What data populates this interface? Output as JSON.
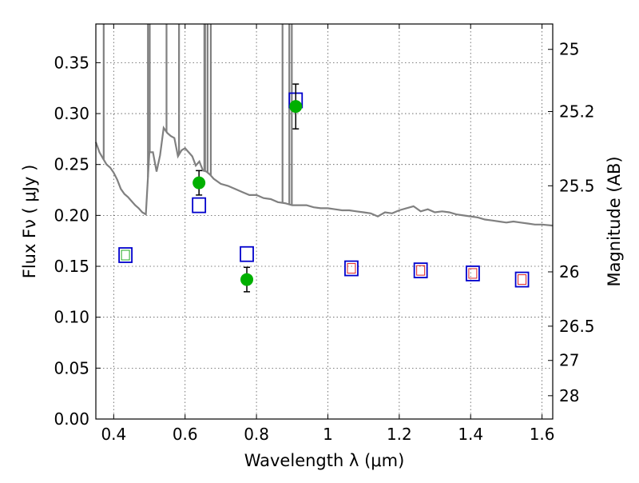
{
  "chart_data": {
    "type": "scatter",
    "xlabel": "Wavelength  λ (μm)",
    "ylabel": "Flux  Fν  ( μJy )",
    "y2label": "Magnitude (AB)",
    "xlim": [
      0.35,
      1.63
    ],
    "ylim": [
      0.0,
      0.388
    ],
    "grid": true,
    "x_ticks": [
      0.4,
      0.6,
      0.8,
      1.0,
      1.2,
      1.4,
      1.6
    ],
    "x_tick_labels": [
      "0.4",
      "0.6",
      "0.8",
      "1",
      "1.2",
      "1.4",
      "1.6"
    ],
    "y_ticks": [
      0.0,
      0.05,
      0.1,
      0.15,
      0.2,
      0.25,
      0.3,
      0.35
    ],
    "y_tick_labels": [
      "0.00",
      "0.05",
      "0.10",
      "0.15",
      "0.20",
      "0.25",
      "0.30",
      "0.35"
    ],
    "mag_ticks": [
      {
        "mag": 25,
        "label": "25"
      },
      {
        "mag": 25.2,
        "label": "25.2"
      },
      {
        "mag": 25.5,
        "label": "25.5"
      },
      {
        "mag": 26,
        "label": "26"
      },
      {
        "mag": 26.5,
        "label": "26.5"
      },
      {
        "mag": 27,
        "label": "27"
      },
      {
        "mag": 28,
        "label": "28"
      }
    ],
    "colors": {
      "model": "#808080",
      "observed": "#00b000",
      "model_boxes": "#0000cc",
      "nir_inner": "#dd2222",
      "blue_inner": "#22aa22",
      "errorbar": "#000000"
    },
    "model_spectrum": {
      "x": [
        0.35,
        0.36,
        0.37,
        0.38,
        0.39,
        0.4,
        0.41,
        0.42,
        0.43,
        0.44,
        0.45,
        0.46,
        0.47,
        0.48,
        0.49,
        0.5,
        0.51,
        0.52,
        0.53,
        0.54,
        0.55,
        0.56,
        0.57,
        0.58,
        0.59,
        0.6,
        0.61,
        0.62,
        0.63,
        0.64,
        0.65,
        0.66,
        0.67,
        0.68,
        0.7,
        0.72,
        0.74,
        0.76,
        0.78,
        0.8,
        0.82,
        0.84,
        0.86,
        0.88,
        0.9,
        0.92,
        0.94,
        0.96,
        0.98,
        1.0,
        1.02,
        1.04,
        1.06,
        1.08,
        1.1,
        1.12,
        1.14,
        1.16,
        1.18,
        1.2,
        1.22,
        1.24,
        1.26,
        1.28,
        1.3,
        1.32,
        1.34,
        1.36,
        1.38,
        1.4,
        1.42,
        1.44,
        1.46,
        1.48,
        1.5,
        1.52,
        1.54,
        1.56,
        1.58,
        1.6,
        1.63
      ],
      "y": [
        0.272,
        0.262,
        0.256,
        0.25,
        0.247,
        0.242,
        0.235,
        0.226,
        0.221,
        0.218,
        0.214,
        0.21,
        0.207,
        0.203,
        0.201,
        0.262,
        0.262,
        0.243,
        0.259,
        0.286,
        0.281,
        0.278,
        0.276,
        0.258,
        0.264,
        0.266,
        0.262,
        0.258,
        0.249,
        0.253,
        0.244,
        0.243,
        0.24,
        0.236,
        0.231,
        0.229,
        0.226,
        0.223,
        0.22,
        0.22,
        0.217,
        0.216,
        0.213,
        0.212,
        0.21,
        0.21,
        0.21,
        0.208,
        0.207,
        0.207,
        0.206,
        0.205,
        0.205,
        0.204,
        0.203,
        0.202,
        0.199,
        0.203,
        0.202,
        0.205,
        0.207,
        0.209,
        0.204,
        0.206,
        0.203,
        0.204,
        0.203,
        0.201,
        0.2,
        0.199,
        0.198,
        0.196,
        0.195,
        0.194,
        0.193,
        0.194,
        0.193,
        0.192,
        0.191,
        0.191,
        0.19
      ]
    },
    "emission_lines": [
      0.372,
      0.496,
      0.501,
      0.548,
      0.583,
      0.654,
      0.656,
      0.663,
      0.672,
      0.873,
      0.892,
      0.899
    ],
    "model_boxes": [
      {
        "x": 0.433,
        "y": 0.161,
        "inner": "blue"
      },
      {
        "x": 0.639,
        "y": 0.21,
        "inner": "none"
      },
      {
        "x": 0.773,
        "y": 0.162,
        "inner": "none"
      },
      {
        "x": 0.91,
        "y": 0.313,
        "inner": "none"
      },
      {
        "x": 1.066,
        "y": 0.148,
        "inner": "nir"
      },
      {
        "x": 1.26,
        "y": 0.146,
        "inner": "nir"
      },
      {
        "x": 1.406,
        "y": 0.143,
        "inner": "nir"
      },
      {
        "x": 1.544,
        "y": 0.137,
        "inner": "nir"
      }
    ],
    "observed": [
      {
        "x": 0.639,
        "y": 0.232,
        "err": 0.012
      },
      {
        "x": 0.773,
        "y": 0.137,
        "err": 0.012
      },
      {
        "x": 0.91,
        "y": 0.307,
        "err": 0.022
      }
    ]
  }
}
